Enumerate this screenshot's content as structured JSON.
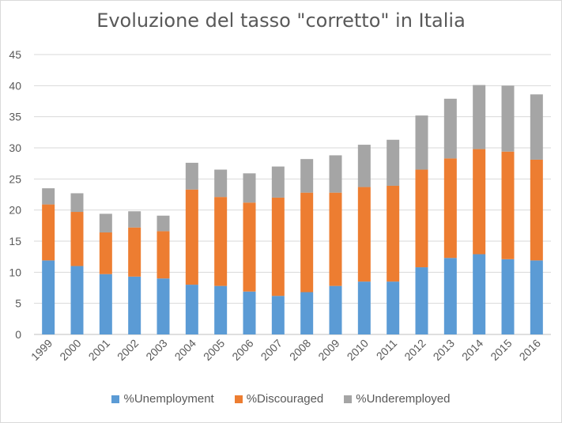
{
  "chart_data": {
    "type": "bar",
    "stacked": true,
    "title": "Evoluzione del tasso \"corretto\" in Italia",
    "xlabel": "",
    "ylabel": "",
    "ylim": [
      0,
      45
    ],
    "yticks": [
      0,
      5,
      10,
      15,
      20,
      25,
      30,
      35,
      40,
      45
    ],
    "grid": true,
    "legend_position": "bottom",
    "categories": [
      "1999",
      "2000",
      "2001",
      "2002",
      "2003",
      "2004",
      "2005",
      "2006",
      "2007",
      "2008",
      "2009",
      "2010",
      "2011",
      "2012",
      "2013",
      "2014",
      "2015",
      "2016"
    ],
    "series": [
      {
        "name": "%Unemployment",
        "color": "#5b9bd5",
        "values": [
          11.9,
          11.0,
          9.7,
          9.3,
          9.0,
          8.0,
          7.8,
          6.9,
          6.2,
          6.8,
          7.8,
          8.5,
          8.5,
          10.8,
          12.3,
          12.9,
          12.1,
          11.9
        ]
      },
      {
        "name": "%Discouraged",
        "color": "#ed7d31",
        "values": [
          9.0,
          8.7,
          6.7,
          7.9,
          7.6,
          15.3,
          14.3,
          14.3,
          15.8,
          16.0,
          15.0,
          15.2,
          15.4,
          15.7,
          16.0,
          16.9,
          17.3,
          16.2
        ]
      },
      {
        "name": "%Underemployed",
        "color": "#a5a5a5",
        "values": [
          2.6,
          3.0,
          3.0,
          2.6,
          2.5,
          4.3,
          4.4,
          4.7,
          5.0,
          5.4,
          6.0,
          6.8,
          7.4,
          8.7,
          9.6,
          10.3,
          10.6,
          10.5
        ]
      }
    ]
  }
}
